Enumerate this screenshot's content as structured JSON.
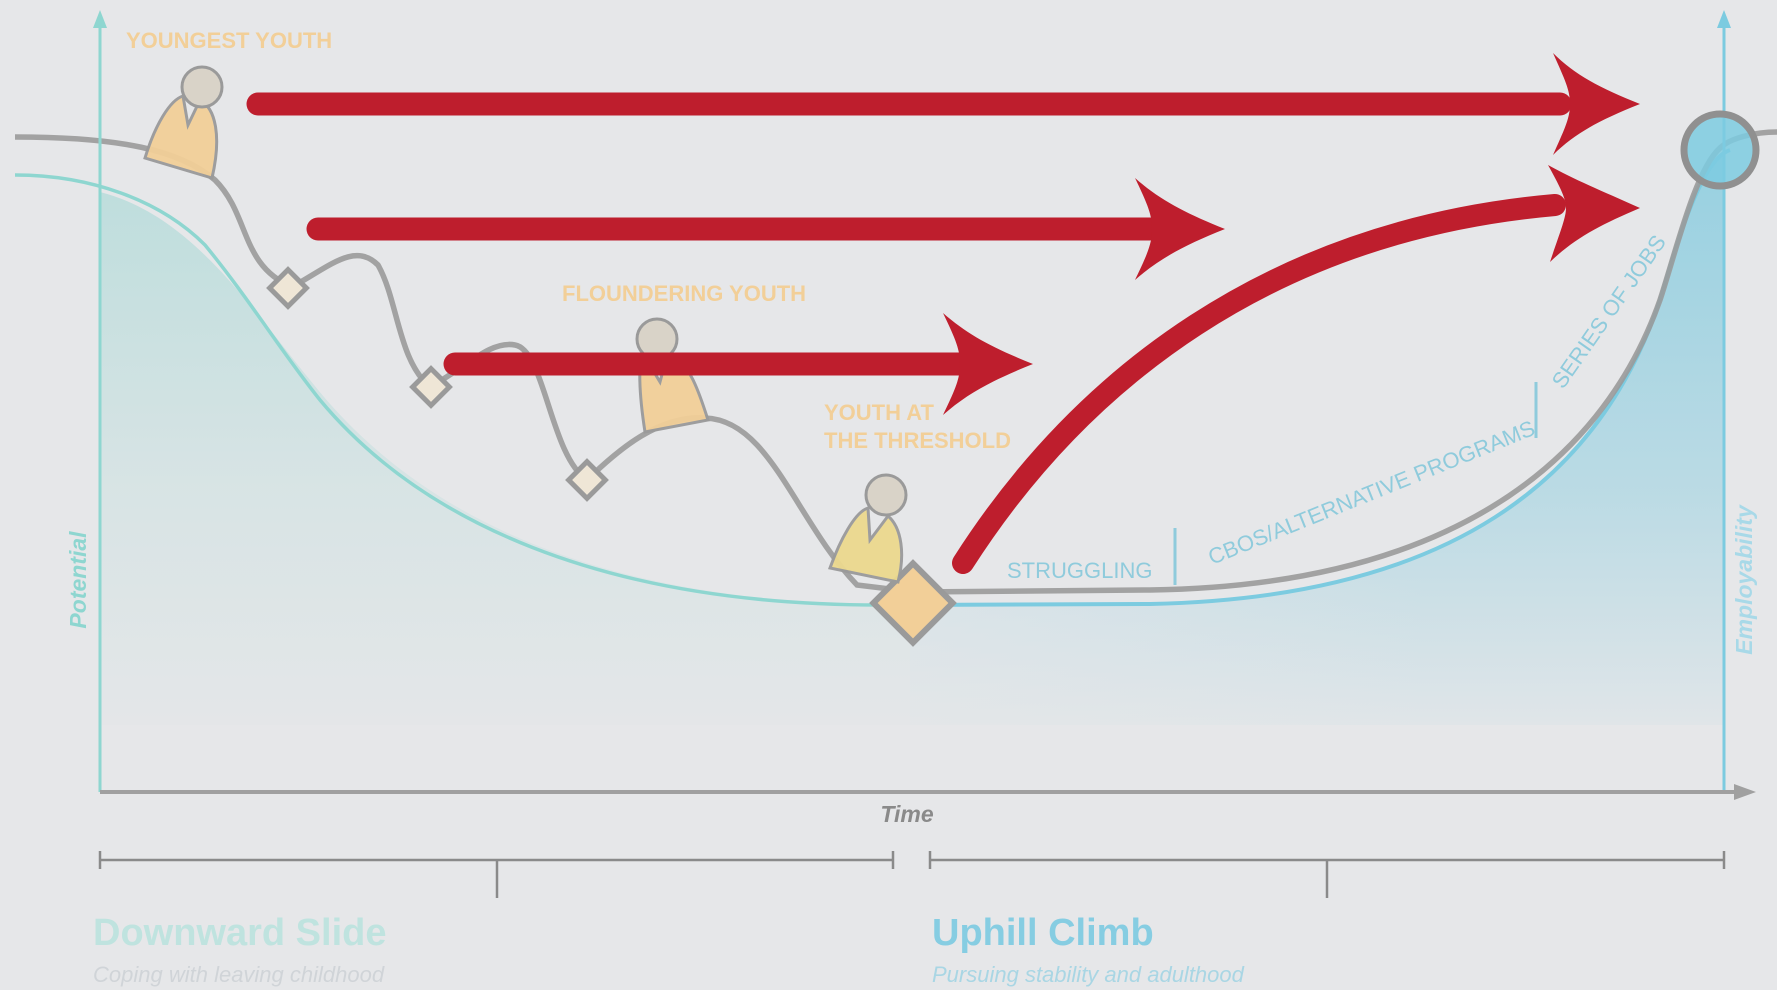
{
  "colors": {
    "background": "#e6e7e9",
    "potential": "#7ecfc9",
    "employability": "#6cc4dc",
    "path": "#9a9a9a",
    "arrow": "#be1e2d",
    "figure_fill": "#f2cf98",
    "figure_fill_threshold": "#ecd98e",
    "figure_head": "#d9d3c8",
    "caption": "#f2cf98",
    "track_label": "#8fcbdc",
    "downward_title": "#bfe3df",
    "uphill_title": "#86cde2",
    "subtitle": "#d0d4d8",
    "timeline": "#8a8a8a"
  },
  "labels": {
    "youngest_youth": "YOUNGEST YOUTH",
    "floundering_youth": "FLOUNDERING YOUTH",
    "threshold_line1": "YOUTH AT",
    "threshold_line2": "THE THRESHOLD",
    "struggling": "STRUGGLING",
    "cbos": "CBOS/ALTERNATIVE PROGRAMS",
    "series_of_jobs": "SERIES OF JOBS"
  },
  "axes": {
    "x_label": "Time",
    "left_label": "Potential",
    "right_label": "Employability"
  },
  "phases": {
    "downward": {
      "title": "Downward Slide",
      "subtitle": "Coping with leaving childhood"
    },
    "uphill": {
      "title": "Uphill Climb",
      "subtitle": "Pursuing stability and adulthood"
    }
  },
  "icons": {
    "figure": "person-figure-icon",
    "milestone": "diamond-icon",
    "goal": "circle-goal-icon",
    "arrow": "arrow-icon"
  }
}
